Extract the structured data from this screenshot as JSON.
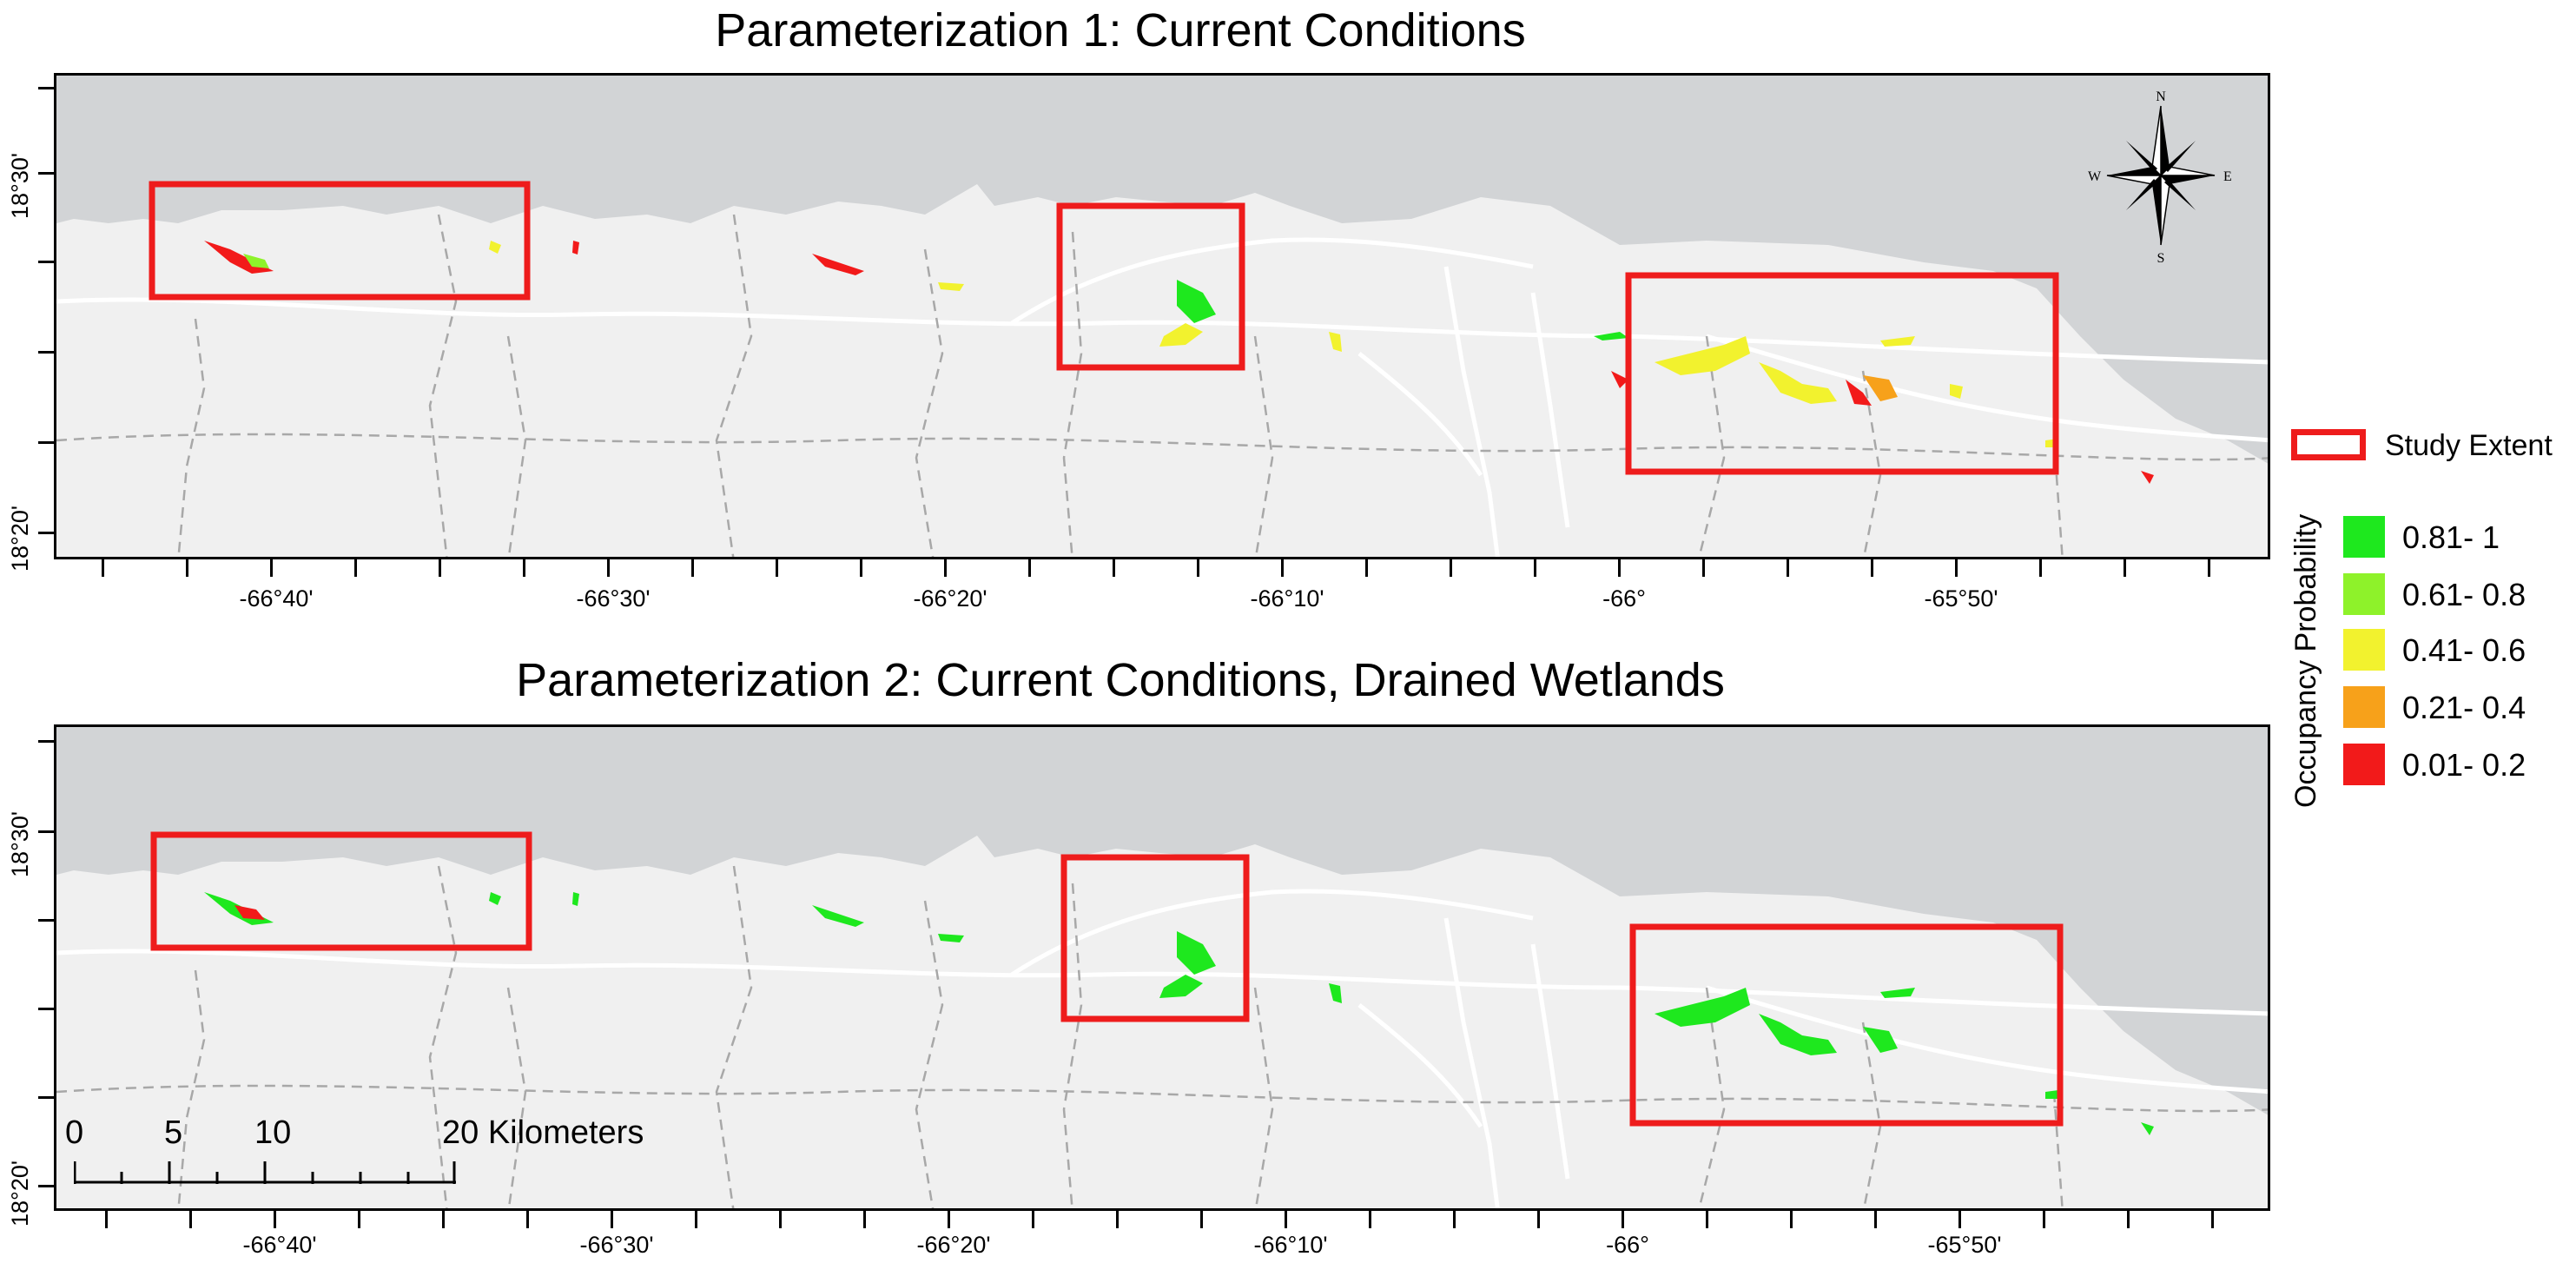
{
  "panels": [
    {
      "title": "Parameterization 1: Current Conditions"
    },
    {
      "title": "Parameterization 2: Current Conditions, Drained Wetlands"
    }
  ],
  "longitude_labels": [
    "-66°40'",
    "-66°30'",
    "-66°20'",
    "-66°10'",
    "-66°",
    "-65°50'"
  ],
  "latitude_labels": [
    "18°30'",
    "18°20'"
  ],
  "legend": {
    "study_extent_label": "Study Extent",
    "title": "Occupancy Probability",
    "classes": [
      {
        "label": "0.81- 1",
        "color": "#1ee81e"
      },
      {
        "label": "0.61- 0.8",
        "color": "#8ef22a"
      },
      {
        "label": "0.41- 0.6",
        "color": "#f2f22e"
      },
      {
        "label": "0.21- 0.4",
        "color": "#f7a11a"
      },
      {
        "label": "0.01- 0.2",
        "color": "#f21a1a"
      }
    ]
  },
  "scale_bar": {
    "labels": [
      "0",
      "5",
      "10",
      "20 Kilometers"
    ]
  },
  "north_arrow": {
    "n": "N",
    "s": "S",
    "e": "E",
    "w": "W"
  },
  "colors": {
    "ocean": "#d2d4d6",
    "land": "#f0f0f0",
    "study_extent": "#ee1c1c",
    "roads": "#ffffff",
    "boundaries": "#a8a8a8"
  }
}
